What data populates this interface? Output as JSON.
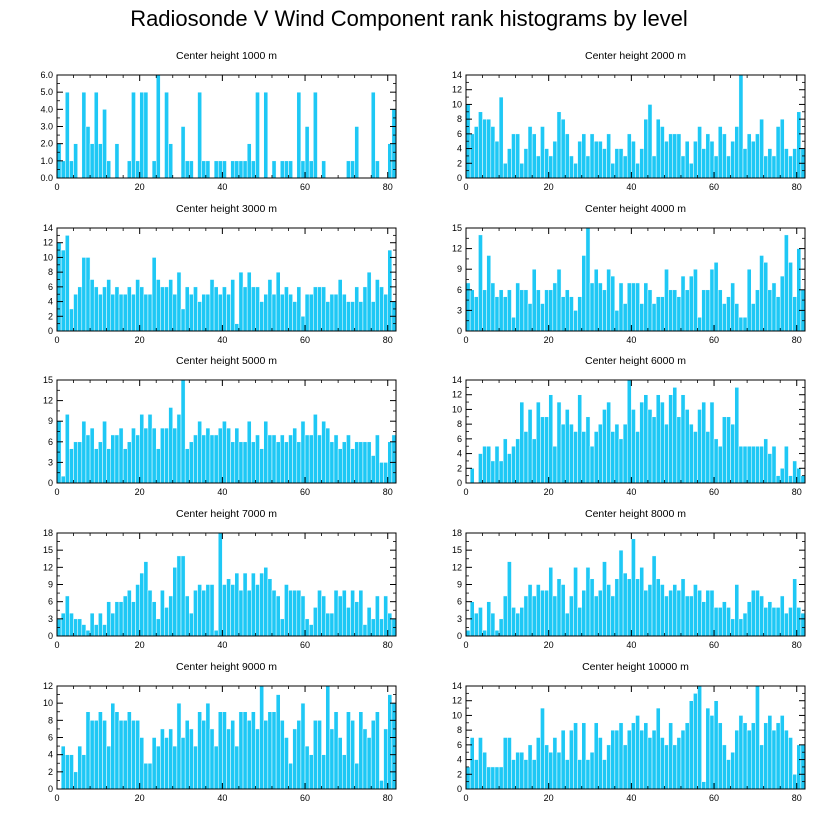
{
  "title": "Radiosonde V Wind Component rank histograms by level",
  "colors": {
    "bar": "#1ec8f5",
    "bar_stroke": "#ffffff",
    "axis": "#000000"
  },
  "chart_data": [
    {
      "type": "bar",
      "title": "Center height 1000 m",
      "xlim": [
        0,
        82
      ],
      "ylim": [
        0,
        6
      ],
      "xticks": [
        0,
        20,
        40,
        60,
        80
      ],
      "yticks": [
        0,
        1,
        2,
        3,
        4,
        5,
        6
      ],
      "ytick_labels": [
        "0.0",
        "1.0",
        "2.0",
        "3.0",
        "4.0",
        "5.0",
        "6.0"
      ],
      "values": [
        2,
        1,
        5,
        1,
        2,
        0,
        5,
        3,
        2,
        5,
        2,
        4,
        1,
        0,
        2,
        0,
        0,
        1,
        5,
        1,
        5,
        5,
        0,
        1,
        6,
        0,
        5,
        2,
        0,
        0,
        3,
        1,
        1,
        0,
        5,
        1,
        1,
        0,
        1,
        1,
        1,
        0,
        1,
        1,
        1,
        1,
        2,
        1,
        5,
        0,
        5,
        0,
        1,
        0,
        1,
        1,
        1,
        0,
        5,
        1,
        3,
        1,
        5,
        0,
        1,
        0,
        0,
        0,
        0,
        0,
        1,
        1,
        3,
        0,
        0,
        0,
        5,
        1,
        0,
        0,
        2,
        4
      ]
    },
    {
      "type": "bar",
      "title": "Center height 2000 m",
      "xlim": [
        0,
        82
      ],
      "ylim": [
        0,
        14
      ],
      "xticks": [
        0,
        20,
        40,
        60,
        80
      ],
      "yticks": [
        0,
        2,
        4,
        6,
        8,
        10,
        12,
        14
      ],
      "ytick_labels": [
        "0",
        "2",
        "4",
        "6",
        "8",
        "10",
        "12",
        "14"
      ],
      "values": [
        10,
        6,
        7,
        9,
        8,
        8,
        7,
        5,
        11,
        2,
        4,
        6,
        6,
        2,
        4,
        7,
        6,
        3,
        7,
        4,
        3,
        5,
        9,
        8,
        6,
        3,
        2,
        5,
        6,
        3,
        6,
        5,
        5,
        4,
        6,
        2,
        4,
        4,
        3,
        6,
        5,
        2,
        4,
        8,
        10,
        3,
        8,
        7,
        5,
        6,
        6,
        6,
        3,
        5,
        2,
        5,
        7,
        4,
        6,
        5,
        3,
        7,
        6,
        3,
        5,
        7,
        14,
        4,
        6,
        5,
        6,
        8,
        3,
        4,
        3,
        7,
        8,
        4,
        3,
        4,
        9,
        4
      ]
    },
    {
      "type": "bar",
      "title": "Center height 3000 m",
      "xlim": [
        0,
        82
      ],
      "ylim": [
        0,
        14
      ],
      "xticks": [
        0,
        20,
        40,
        60,
        80
      ],
      "yticks": [
        0,
        2,
        4,
        6,
        8,
        10,
        12,
        14
      ],
      "ytick_labels": [
        "0",
        "2",
        "4",
        "6",
        "8",
        "10",
        "12",
        "14"
      ],
      "values": [
        12,
        11,
        13,
        3,
        5,
        6,
        10,
        10,
        7,
        6,
        5,
        6,
        7,
        5,
        6,
        5,
        5,
        6,
        5,
        7,
        6,
        5,
        5,
        10,
        7,
        6,
        6,
        7,
        5,
        8,
        3,
        6,
        5,
        6,
        4,
        5,
        5,
        7,
        6,
        5,
        6,
        5,
        7,
        1,
        8,
        6,
        8,
        6,
        6,
        4,
        5,
        7,
        5,
        8,
        5,
        6,
        5,
        4,
        6,
        2,
        5,
        5,
        6,
        6,
        6,
        4,
        5,
        5,
        7,
        5,
        4,
        4,
        6,
        4,
        6,
        8,
        4,
        7,
        6,
        5,
        11,
        4
      ]
    },
    {
      "type": "bar",
      "title": "Center height 4000 m",
      "xlim": [
        0,
        82
      ],
      "ylim": [
        0,
        15
      ],
      "xticks": [
        0,
        20,
        40,
        60,
        80
      ],
      "yticks": [
        0,
        3,
        6,
        9,
        12,
        15
      ],
      "ytick_labels": [
        "0",
        "3",
        "6",
        "9",
        "12",
        "15"
      ],
      "values": [
        7,
        6,
        5,
        14,
        6,
        11,
        7,
        5,
        6,
        5,
        6,
        2,
        7,
        6,
        6,
        4,
        9,
        6,
        4,
        6,
        6,
        7,
        9,
        5,
        6,
        5,
        3,
        5,
        11,
        15,
        7,
        9,
        7,
        6,
        9,
        8,
        3,
        7,
        4,
        7,
        7,
        7,
        4,
        7,
        6,
        4,
        5,
        5,
        9,
        6,
        6,
        5,
        8,
        6,
        8,
        9,
        2,
        6,
        6,
        9,
        10,
        6,
        4,
        5,
        7,
        4,
        2,
        2,
        9,
        4,
        6,
        11,
        10,
        6,
        7,
        5,
        8,
        14,
        10,
        5,
        12,
        6
      ]
    },
    {
      "type": "bar",
      "title": "Center height 5000 m",
      "xlim": [
        0,
        82
      ],
      "ylim": [
        0,
        15
      ],
      "xticks": [
        0,
        20,
        40,
        60,
        80
      ],
      "yticks": [
        0,
        3,
        6,
        9,
        12,
        15
      ],
      "ytick_labels": [
        "0",
        "3",
        "6",
        "9",
        "12",
        "15"
      ],
      "values": [
        9,
        1,
        10,
        5,
        6,
        6,
        9,
        7,
        8,
        5,
        6,
        9,
        5,
        7,
        7,
        8,
        5,
        6,
        8,
        7,
        10,
        8,
        10,
        8,
        5,
        8,
        8,
        11,
        8,
        10,
        15,
        5,
        6,
        7,
        9,
        7,
        8,
        7,
        7,
        8,
        9,
        8,
        6,
        8,
        6,
        6,
        9,
        6,
        7,
        5,
        9,
        7,
        7,
        6,
        7,
        6,
        7,
        8,
        6,
        9,
        7,
        7,
        10,
        7,
        9,
        8,
        6,
        7,
        5,
        6,
        7,
        5,
        6,
        6,
        6,
        6,
        4,
        7,
        3,
        3,
        6,
        7
      ]
    },
    {
      "type": "bar",
      "title": "Center height 6000 m",
      "xlim": [
        0,
        82
      ],
      "ylim": [
        0,
        14
      ],
      "xticks": [
        0,
        20,
        40,
        60,
        80
      ],
      "yticks": [
        0,
        2,
        4,
        6,
        8,
        10,
        12,
        14
      ],
      "ytick_labels": [
        "0",
        "2",
        "4",
        "6",
        "8",
        "10",
        "12",
        "14"
      ],
      "values": [
        0,
        2,
        0,
        4,
        5,
        5,
        3,
        5,
        3,
        6,
        4,
        5,
        6,
        11,
        7,
        10,
        6,
        11,
        9,
        9,
        12,
        5,
        11,
        8,
        10,
        8,
        7,
        12,
        7,
        9,
        5,
        7,
        8,
        10,
        11,
        7,
        8,
        6,
        8,
        14,
        10,
        7,
        11,
        12,
        10,
        9,
        12,
        11,
        8,
        12,
        13,
        9,
        12,
        10,
        8,
        7,
        10,
        11,
        7,
        11,
        6,
        5,
        9,
        9,
        8,
        13,
        5,
        5,
        5,
        5,
        5,
        5,
        6,
        4,
        5,
        1,
        2,
        5,
        1,
        3,
        2,
        1
      ]
    },
    {
      "type": "bar",
      "title": "Center height 7000 m",
      "xlim": [
        0,
        82
      ],
      "ylim": [
        0,
        18
      ],
      "xticks": [
        0,
        20,
        40,
        60,
        80
      ],
      "yticks": [
        0,
        3,
        6,
        9,
        12,
        15,
        18
      ],
      "ytick_labels": [
        "0",
        "3",
        "6",
        "9",
        "12",
        "15",
        "18"
      ],
      "values": [
        3,
        4,
        7,
        4,
        3,
        3,
        2,
        1,
        4,
        2,
        4,
        2,
        6,
        4,
        6,
        6,
        7,
        8,
        6,
        9,
        11,
        13,
        8,
        6,
        3,
        8,
        5,
        7,
        12,
        14,
        14,
        7,
        4,
        8,
        9,
        8,
        9,
        9,
        1,
        18,
        9,
        10,
        9,
        11,
        8,
        11,
        8,
        11,
        9,
        11,
        12,
        10,
        8,
        7,
        3,
        9,
        8,
        8,
        8,
        7,
        3,
        2,
        5,
        8,
        7,
        4,
        4,
        8,
        7,
        8,
        5,
        8,
        6,
        8,
        2,
        5,
        3,
        7,
        3,
        7,
        4,
        3
      ]
    },
    {
      "type": "bar",
      "title": "Center height 8000 m",
      "xlim": [
        0,
        82
      ],
      "ylim": [
        0,
        18
      ],
      "xticks": [
        0,
        20,
        40,
        60,
        80
      ],
      "yticks": [
        0,
        3,
        6,
        9,
        12,
        15,
        18
      ],
      "ytick_labels": [
        "0",
        "3",
        "6",
        "9",
        "12",
        "15",
        "18"
      ],
      "values": [
        1,
        6,
        4,
        5,
        1,
        6,
        4,
        1,
        3,
        7,
        13,
        5,
        4,
        5,
        7,
        9,
        7,
        9,
        8,
        8,
        12,
        7,
        10,
        9,
        4,
        7,
        12,
        5,
        8,
        12,
        10,
        7,
        8,
        13,
        9,
        7,
        10,
        15,
        11,
        10,
        17,
        10,
        12,
        8,
        9,
        14,
        10,
        9,
        7,
        8,
        9,
        8,
        10,
        7,
        7,
        9,
        8,
        6,
        8,
        8,
        5,
        5,
        6,
        5,
        3,
        9,
        3,
        4,
        6,
        8,
        8,
        7,
        5,
        6,
        5,
        5,
        7,
        4,
        5,
        10,
        5,
        4
      ]
    },
    {
      "type": "bar",
      "title": "Center height 9000 m",
      "xlim": [
        0,
        82
      ],
      "ylim": [
        0,
        12
      ],
      "xticks": [
        0,
        20,
        40,
        60,
        80
      ],
      "yticks": [
        0,
        2,
        4,
        6,
        8,
        10,
        12
      ],
      "ytick_labels": [
        "0",
        "2",
        "4",
        "6",
        "8",
        "10",
        "12"
      ],
      "values": [
        0,
        5,
        4,
        4,
        2,
        5,
        4,
        9,
        8,
        8,
        9,
        8,
        5,
        10,
        9,
        8,
        8,
        9,
        8,
        8,
        6,
        3,
        3,
        6,
        5,
        7,
        6,
        7,
        5,
        10,
        6,
        8,
        7,
        5,
        9,
        8,
        10,
        7,
        5,
        9,
        9,
        7,
        8,
        5,
        9,
        9,
        8,
        9,
        7,
        12,
        8,
        9,
        9,
        11,
        8,
        6,
        3,
        7,
        8,
        10,
        5,
        4,
        8,
        8,
        4,
        12,
        7,
        9,
        6,
        4,
        9,
        8,
        3,
        9,
        7,
        6,
        8,
        9,
        1,
        7,
        11,
        10
      ]
    },
    {
      "type": "bar",
      "title": "Center height 10000 m",
      "xlim": [
        0,
        82
      ],
      "ylim": [
        0,
        14
      ],
      "xticks": [
        0,
        20,
        40,
        60,
        80
      ],
      "yticks": [
        0,
        2,
        4,
        6,
        8,
        10,
        12,
        14
      ],
      "ytick_labels": [
        "0",
        "2",
        "4",
        "6",
        "8",
        "10",
        "12",
        "14"
      ],
      "values": [
        3,
        7,
        4,
        7,
        5,
        3,
        3,
        3,
        3,
        7,
        7,
        4,
        5,
        5,
        4,
        6,
        4,
        7,
        11,
        6,
        5,
        7,
        5,
        8,
        4,
        8,
        9,
        4,
        9,
        4,
        5,
        9,
        7,
        4,
        6,
        8,
        8,
        9,
        6,
        8,
        9,
        10,
        8,
        9,
        7,
        8,
        11,
        7,
        6,
        9,
        6,
        7,
        8,
        9,
        12,
        13,
        14,
        1,
        11,
        10,
        12,
        9,
        6,
        4,
        5,
        8,
        10,
        9,
        8,
        9,
        14,
        6,
        9,
        10,
        8,
        9,
        10,
        8,
        7,
        2,
        6,
        6
      ]
    }
  ]
}
